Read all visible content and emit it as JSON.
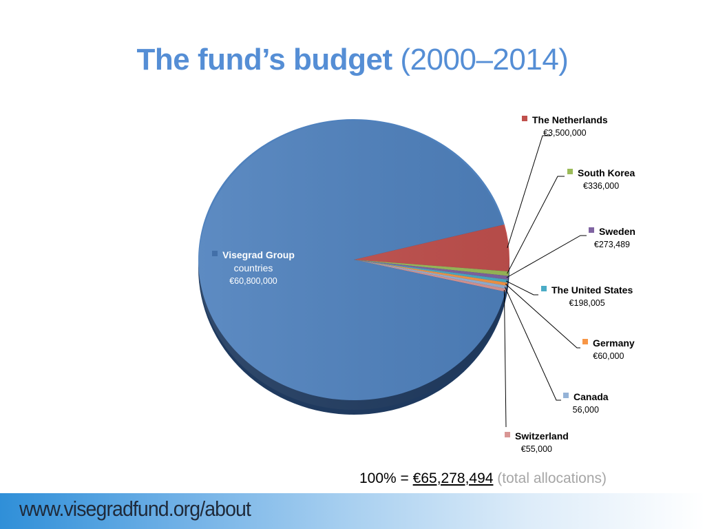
{
  "slide": {
    "title_bold": "The fund’s budget",
    "title_light": "(2000–2014)",
    "total_prefix": "100% =",
    "total_amount": "€65,278,494",
    "total_note": "(total allocations)",
    "footer_url": "www.visegradfund.org/about"
  },
  "labels": [
    {
      "name": "Visegrad Group",
      "name2": "countries",
      "value": "€60,800,000",
      "color": "#4F81BD"
    },
    {
      "name": "The Netherlands",
      "value": "€3,500,000",
      "color": "#C0504D"
    },
    {
      "name": "South Korea",
      "value": "€336,000",
      "color": "#9BBB59"
    },
    {
      "name": "Sweden",
      "value": "€273,489",
      "color": "#8064A2"
    },
    {
      "name": "The United States",
      "value": "€198,005",
      "color": "#4BACC6"
    },
    {
      "name": "Germany",
      "value": "€60,000",
      "color": "#F79646"
    },
    {
      "name": "Canada",
      "value": "56,000",
      "color": "#95B3D7"
    },
    {
      "name": "Switzerland",
      "value": "€55,000",
      "color": "#D99694"
    }
  ],
  "chart_data": {
    "type": "pie",
    "title": "The fund’s budget (2000–2014)",
    "categories": [
      "Visegrad Group countries",
      "The Netherlands",
      "South Korea",
      "Sweden",
      "The United States",
      "Germany",
      "Canada",
      "Switzerland"
    ],
    "values": [
      60800000,
      3500000,
      336000,
      273489,
      198005,
      60000,
      56000,
      55000
    ],
    "value_labels": [
      "€60,800,000",
      "€3,500,000",
      "€336,000",
      "€273,489",
      "€198,005",
      "€60,000",
      "56,000",
      "€55,000"
    ],
    "colors": [
      "#4F81BD",
      "#C0504D",
      "#9BBB59",
      "#8064A2",
      "#4BACC6",
      "#F79646",
      "#95B3D7",
      "#D99694"
    ],
    "total": 65278494,
    "total_label": "100% = €65,278,494 (total allocations)",
    "legend": "data labels with leader lines (right side)",
    "style": "3D pie with slight tilt"
  }
}
